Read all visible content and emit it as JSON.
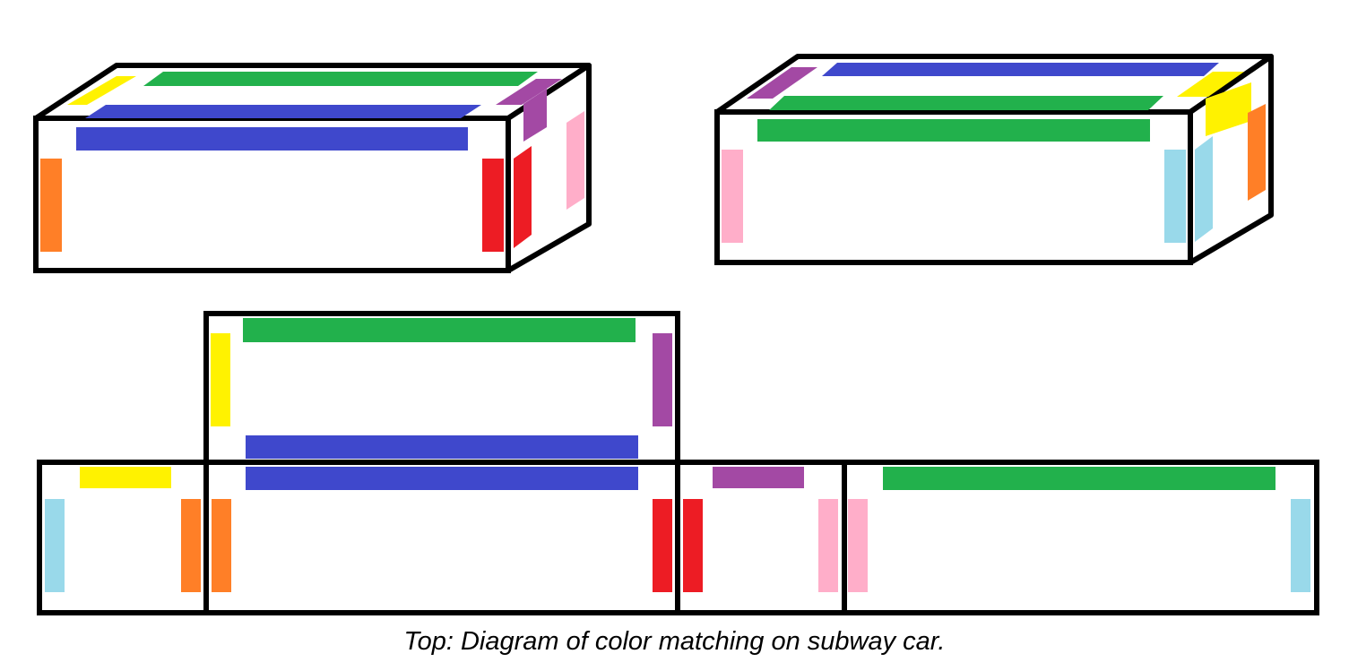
{
  "caption": "Top:  Diagram of color matching on subway car.",
  "colors": {
    "yellow": "#fff200",
    "green": "#22b14c",
    "blue": "#3f48cc",
    "purple": "#a349a4",
    "pink": "#ffaec9",
    "red": "#ed1c24",
    "orange": "#ff7f27",
    "light_blue": "#99d9ea",
    "outline": "#000000"
  },
  "views": [
    {
      "name": "perspective-view-left"
    },
    {
      "name": "perspective-view-right"
    },
    {
      "name": "unfolded-net-view"
    }
  ]
}
